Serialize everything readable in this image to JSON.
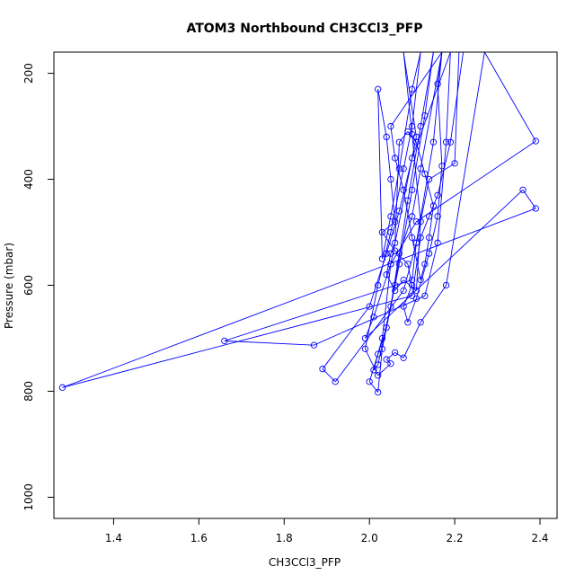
{
  "chart_data": {
    "type": "line",
    "title": "ATOM3 Northbound CH3CCl3_PFP",
    "xlabel": "CH3CCl3_PFP",
    "ylabel": "Pressure (mbar)",
    "xlim": [
      1.26,
      2.44
    ],
    "ylim": [
      1040,
      160
    ],
    "y_reversed": true,
    "x_ticks": [
      1.4,
      1.6,
      1.8,
      2.0,
      2.2,
      2.4
    ],
    "x_tick_labels": [
      "1.4",
      "1.6",
      "1.8",
      "2.0",
      "2.2",
      "2.4"
    ],
    "y_ticks": [
      200,
      400,
      600,
      800,
      1000
    ],
    "y_tick_labels": [
      "200",
      "400",
      "600",
      "800",
      "1000"
    ],
    "grid": false,
    "series": [
      {
        "color": "#0000ff",
        "marker": "open-circle",
        "points": [
          [
            2.08,
            160
          ],
          [
            2.11,
            320
          ],
          [
            2.05,
            560
          ],
          [
            2.03,
            700
          ],
          [
            2.01,
            760
          ],
          [
            2.02,
            750
          ],
          [
            2.06,
            600
          ],
          [
            2.09,
            440
          ],
          [
            2.12,
            300
          ],
          [
            2.15,
            160
          ],
          [
            2.13,
            280
          ],
          [
            2.1,
            420
          ],
          [
            2.07,
            560
          ],
          [
            2.04,
            680
          ],
          [
            2.02,
            730
          ],
          [
            2.0,
            782
          ],
          [
            2.02,
            802
          ],
          [
            2.03,
            720
          ],
          [
            2.05,
            640
          ],
          [
            2.07,
            540
          ],
          [
            2.1,
            470
          ],
          [
            2.12,
            380
          ],
          [
            2.17,
            160
          ],
          [
            2.15,
            330
          ],
          [
            2.11,
            520
          ],
          [
            2.08,
            610
          ],
          [
            1.92,
            782
          ],
          [
            1.89,
            758
          ],
          [
            2.0,
            640
          ],
          [
            2.04,
            540
          ],
          [
            2.07,
            460
          ],
          [
            2.1,
            360
          ],
          [
            2.19,
            160
          ],
          [
            2.18,
            330
          ],
          [
            2.16,
            520
          ],
          [
            2.13,
            620
          ],
          [
            1.87,
            713
          ],
          [
            1.66,
            705
          ],
          [
            2.1,
            590
          ],
          [
            2.11,
            520
          ],
          [
            2.14,
            400
          ],
          [
            2.2,
            370
          ],
          [
            2.21,
            160
          ],
          [
            2.22,
            160
          ],
          [
            2.19,
            330
          ],
          [
            2.16,
            430
          ],
          [
            2.14,
            470
          ],
          [
            2.12,
            510
          ],
          [
            2.1,
            620
          ],
          [
            1.28,
            793
          ],
          [
            2.39,
            455
          ],
          [
            2.36,
            420
          ],
          [
            1.99,
            700
          ],
          [
            2.01,
            660
          ],
          [
            2.05,
            560
          ],
          [
            2.11,
            480
          ],
          [
            2.39,
            328
          ],
          [
            2.27,
            160
          ],
          [
            2.18,
            600
          ],
          [
            2.12,
            670
          ],
          [
            2.08,
            737
          ],
          [
            2.06,
            727
          ],
          [
            2.04,
            740
          ],
          [
            2.05,
            748
          ],
          [
            2.02,
            770
          ],
          [
            1.99,
            720
          ],
          [
            2.02,
            600
          ],
          [
            2.05,
            500
          ],
          [
            2.08,
            380
          ],
          [
            2.1,
            300
          ],
          [
            2.12,
            160
          ],
          [
            2.1,
            230
          ],
          [
            2.07,
            380
          ],
          [
            2.05,
            470
          ],
          [
            2.03,
            550
          ],
          [
            2.02,
            230
          ],
          [
            2.04,
            320
          ],
          [
            2.05,
            400
          ],
          [
            2.06,
            480
          ],
          [
            2.03,
            500
          ],
          [
            2.06,
            535
          ],
          [
            2.09,
            560
          ],
          [
            2.1,
            600
          ],
          [
            2.08,
            640
          ],
          [
            2.09,
            670
          ],
          [
            2.11,
            625
          ],
          [
            2.14,
            540
          ],
          [
            2.16,
            470
          ],
          [
            2.17,
            375
          ],
          [
            2.16,
            220
          ],
          [
            2.17,
            160
          ],
          [
            2.05,
            300
          ],
          [
            2.06,
            360
          ],
          [
            2.08,
            420
          ],
          [
            2.1,
            510
          ],
          [
            2.12,
            590
          ],
          [
            2.13,
            560
          ],
          [
            2.14,
            510
          ],
          [
            2.15,
            450
          ],
          [
            2.13,
            390
          ],
          [
            2.11,
            330
          ],
          [
            2.09,
            310
          ],
          [
            2.07,
            330
          ],
          [
            2.06,
            520
          ],
          [
            2.05,
            540
          ],
          [
            2.04,
            580
          ],
          [
            2.06,
            610
          ],
          [
            2.08,
            590
          ],
          [
            2.11,
            610
          ],
          [
            2.12,
            480
          ],
          [
            2.1,
            315
          ],
          [
            2.08,
            160
          ]
        ]
      }
    ]
  }
}
